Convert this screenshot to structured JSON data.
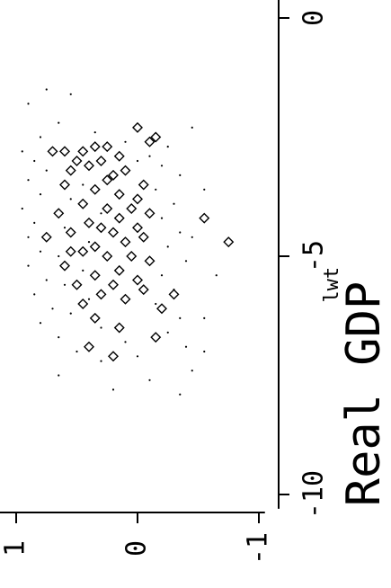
{
  "chart_data": {
    "type": "scatter",
    "title": "Real GDP",
    "xlabel": "lwt",
    "ylabel": "",
    "xlim": [
      -10.3,
      0.4
    ],
    "ylim": [
      -1.05,
      1.2
    ],
    "x_ticks": [
      {
        "value": -10,
        "label": "-10"
      },
      {
        "value": -5,
        "label": "-5"
      },
      {
        "value": 0,
        "label": "0"
      }
    ],
    "y_ticks": [
      {
        "value": 1,
        "label": "1"
      },
      {
        "value": 0,
        "label": "0"
      },
      {
        "value": -1,
        "label": "-1"
      }
    ],
    "grid": false,
    "legend": "none",
    "rotated": "chart drawn rotated 90 degrees counter-clockwise",
    "series": [
      {
        "marker": "diamond",
        "points": [
          [
            -2.3,
            0.0
          ],
          [
            -2.5,
            -0.15
          ],
          [
            -2.6,
            -0.1
          ],
          [
            -2.7,
            0.25
          ],
          [
            -2.7,
            0.35
          ],
          [
            -2.8,
            0.45
          ],
          [
            -2.8,
            0.6
          ],
          [
            -2.8,
            0.7
          ],
          [
            -2.9,
            0.15
          ],
          [
            -3.0,
            0.5
          ],
          [
            -3.0,
            0.3
          ],
          [
            -3.1,
            0.4
          ],
          [
            -3.2,
            0.1
          ],
          [
            -3.3,
            0.2
          ],
          [
            -3.5,
            0.6
          ],
          [
            -3.5,
            -0.05
          ],
          [
            -3.6,
            0.35
          ],
          [
            -3.7,
            0.15
          ],
          [
            -3.8,
            0.0
          ],
          [
            -3.9,
            0.45
          ],
          [
            -4.0,
            0.25
          ],
          [
            -4.0,
            0.05
          ],
          [
            -4.1,
            0.65
          ],
          [
            -4.1,
            -0.1
          ],
          [
            -4.2,
            0.15
          ],
          [
            -4.3,
            0.4
          ],
          [
            -4.4,
            0.3
          ],
          [
            -4.4,
            0.0
          ],
          [
            -4.5,
            0.55
          ],
          [
            -4.5,
            0.2
          ],
          [
            -4.6,
            -0.05
          ],
          [
            -4.6,
            0.75
          ],
          [
            -4.7,
            0.1
          ],
          [
            -4.8,
            0.35
          ],
          [
            -4.9,
            0.45
          ],
          [
            -5.0,
            0.25
          ],
          [
            -5.0,
            0.05
          ],
          [
            -5.1,
            -0.1
          ],
          [
            -5.2,
            0.6
          ],
          [
            -5.3,
            0.15
          ],
          [
            -5.4,
            0.35
          ],
          [
            -5.5,
            0.0
          ],
          [
            -5.6,
            0.5
          ],
          [
            -5.6,
            0.2
          ],
          [
            -5.7,
            -0.05
          ],
          [
            -5.8,
            0.3
          ],
          [
            -5.9,
            0.1
          ],
          [
            -6.0,
            0.45
          ],
          [
            -6.1,
            -0.2
          ],
          [
            -6.3,
            0.35
          ],
          [
            -6.5,
            0.15
          ],
          [
            -6.7,
            -0.15
          ],
          [
            -6.9,
            0.4
          ],
          [
            -7.1,
            0.2
          ],
          [
            -4.2,
            -0.55
          ],
          [
            -4.7,
            -0.75
          ],
          [
            -5.8,
            -0.3
          ],
          [
            -3.2,
            0.55
          ],
          [
            -3.4,
            0.25
          ],
          [
            -4.9,
            0.55
          ]
        ]
      },
      {
        "marker": "dot",
        "points": [
          [
            -1.5,
            0.75
          ],
          [
            -1.6,
            0.55
          ],
          [
            -1.8,
            0.9
          ],
          [
            -2.2,
            0.65
          ],
          [
            -2.3,
            -0.45
          ],
          [
            -2.4,
            0.35
          ],
          [
            -2.5,
            0.8
          ],
          [
            -2.6,
            0.1
          ],
          [
            -2.7,
            -0.25
          ],
          [
            -2.8,
            0.95
          ],
          [
            -2.9,
            -0.1
          ],
          [
            -3.0,
            0.85
          ],
          [
            -3.0,
            0.0
          ],
          [
            -3.1,
            -0.2
          ],
          [
            -3.2,
            0.75
          ],
          [
            -3.3,
            -0.35
          ],
          [
            -3.4,
            0.9
          ],
          [
            -3.5,
            0.45
          ],
          [
            -3.6,
            -0.15
          ],
          [
            -3.7,
            0.8
          ],
          [
            -3.8,
            0.55
          ],
          [
            -3.9,
            -0.3
          ],
          [
            -4.0,
            0.95
          ],
          [
            -4.1,
            0.3
          ],
          [
            -4.2,
            -0.2
          ],
          [
            -4.3,
            0.85
          ],
          [
            -4.4,
            0.6
          ],
          [
            -4.5,
            -0.35
          ],
          [
            -4.6,
            0.9
          ],
          [
            -4.7,
            0.4
          ],
          [
            -4.8,
            -0.25
          ],
          [
            -4.9,
            0.8
          ],
          [
            -5.0,
            0.65
          ],
          [
            -5.1,
            -0.4
          ],
          [
            -5.2,
            0.9
          ],
          [
            -5.3,
            0.45
          ],
          [
            -5.4,
            -0.2
          ],
          [
            -5.5,
            0.75
          ],
          [
            -5.6,
            0.6
          ],
          [
            -5.7,
            -0.3
          ],
          [
            -5.8,
            0.85
          ],
          [
            -5.9,
            0.4
          ],
          [
            -6.0,
            -0.15
          ],
          [
            -6.1,
            0.7
          ],
          [
            -6.2,
            0.55
          ],
          [
            -6.3,
            -0.35
          ],
          [
            -6.4,
            0.8
          ],
          [
            -6.5,
            0.3
          ],
          [
            -6.6,
            -0.25
          ],
          [
            -6.7,
            0.65
          ],
          [
            -6.8,
            0.1
          ],
          [
            -6.9,
            -0.4
          ],
          [
            -7.0,
            0.5
          ],
          [
            -7.1,
            0.0
          ],
          [
            -7.2,
            0.3
          ],
          [
            -7.4,
            -0.45
          ],
          [
            -7.5,
            0.65
          ],
          [
            -7.6,
            -0.1
          ],
          [
            -7.8,
            0.2
          ],
          [
            -7.9,
            -0.35
          ],
          [
            -6.3,
            -0.55
          ],
          [
            -5.4,
            -0.65
          ],
          [
            -7.0,
            -0.55
          ],
          [
            -4.6,
            -0.45
          ],
          [
            -3.6,
            -0.55
          ]
        ]
      }
    ]
  }
}
